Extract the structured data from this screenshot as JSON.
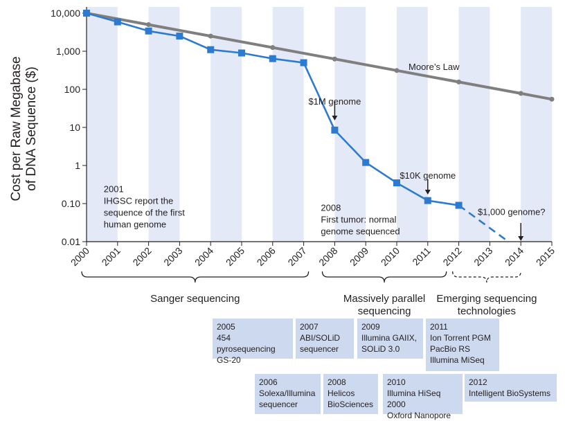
{
  "chart_data": {
    "type": "line",
    "ylabel": "Cost per Raw Megabase of DNA Sequence ($)",
    "ylabel_lines": [
      "Cost per Raw Megabase",
      "of DNA Sequence ($)"
    ],
    "y_scale": "log",
    "ylim": [
      0.01,
      10000
    ],
    "xlim": [
      2000,
      2015
    ],
    "x_ticks": [
      "2000",
      "2001",
      "2002",
      "2003",
      "2004",
      "2005",
      "2006",
      "2007",
      "2008",
      "2009",
      "2010",
      "2011",
      "2012",
      "2013",
      "2014",
      "2015"
    ],
    "y_ticks": [
      {
        "value": 10000,
        "label": "10,000"
      },
      {
        "value": 1000,
        "label": "1,000"
      },
      {
        "value": 100,
        "label": "100"
      },
      {
        "value": 10,
        "label": "10"
      },
      {
        "value": 1,
        "label": "1"
      },
      {
        "value": 0.1,
        "label": "0.10"
      },
      {
        "value": 0.01,
        "label": "0.01"
      }
    ],
    "series": [
      {
        "name": "Moore's Law",
        "color": "#7f7f7f",
        "x": [
          2000,
          2002,
          2004,
          2006,
          2008,
          2010,
          2012,
          2014,
          2015
        ],
        "y": [
          10000,
          5000,
          2500,
          1250,
          625,
          312,
          156,
          78,
          55
        ]
      },
      {
        "name": "",
        "color": "#2d7bd0",
        "x": [
          2000,
          2001,
          2002,
          2003,
          2004,
          2005,
          2006,
          2007,
          2008,
          2009,
          2010,
          2011,
          2012
        ],
        "y": [
          10000,
          5900,
          3400,
          2500,
          1100,
          900,
          640,
          500,
          8.5,
          1.2,
          0.35,
          0.12,
          0.09
        ]
      },
      {
        "name": "",
        "color": "#2d7bd0",
        "dashed": true,
        "x": [
          2012,
          2013.6
        ],
        "y": [
          0.09,
          0.01
        ]
      }
    ],
    "annotations": [
      {
        "x": 2001,
        "y": 0.2,
        "lines": [
          "2001",
          "IHGSC report the",
          "sequence of the first",
          "human genome"
        ]
      },
      {
        "x": 2008,
        "y": 0.065,
        "lines": [
          "2008",
          "First tumor: normal",
          "genome sequenced"
        ]
      },
      {
        "x": 2008,
        "y": 40,
        "lines": [
          "$1M genome"
        ],
        "arrow": true
      },
      {
        "x": 2011,
        "y": 0.45,
        "lines": [
          "$10K genome"
        ],
        "arrow": true
      },
      {
        "x": 2013.7,
        "y": 0.05,
        "lines": [
          "$1,000 genome?"
        ],
        "arrow": true
      },
      {
        "x": 2011.2,
        "y": 320,
        "lines": [
          "Moore’s Law"
        ]
      }
    ],
    "grid": "alternating vertical bands",
    "band_color": "#e3e9f7"
  },
  "eras": [
    {
      "label_lines": [
        "Sanger sequencing"
      ],
      "x_start": 2000,
      "x_end": 2007,
      "dashed": false
    },
    {
      "label_lines": [
        "Massively parallel",
        "sequencing"
      ],
      "x_start": 2007.6,
      "x_end": 2011.6,
      "dashed": false
    },
    {
      "label_lines": [
        "Emerging sequencing",
        "technologies"
      ],
      "x_start": 2011.8,
      "x_end": 2014,
      "dashed": true
    }
  ],
  "tech_boxes": [
    {
      "year": "2005",
      "lines": [
        "454 pyrosequencing",
        "GS-20"
      ]
    },
    {
      "year": "2007",
      "lines": [
        "ABI/SOLiD",
        "sequencer"
      ]
    },
    {
      "year": "2009",
      "lines": [
        "Illumina GAIIX,",
        "SOLiD 3.0"
      ]
    },
    {
      "year": "2011",
      "lines": [
        "Ion Torrent PGM",
        "PacBio RS",
        "Illumina MiSeq"
      ]
    },
    {
      "year": "2006",
      "lines": [
        "Solexa/Illumina",
        "sequencer"
      ]
    },
    {
      "year": "2008",
      "lines": [
        "Helicos",
        "BioSciences"
      ]
    },
    {
      "year": "2010",
      "lines": [
        "Illumina HiSeq 2000",
        "Oxford Nanopore"
      ]
    },
    {
      "year": "2012",
      "lines": [
        "Intelligent BioSystems"
      ]
    }
  ]
}
